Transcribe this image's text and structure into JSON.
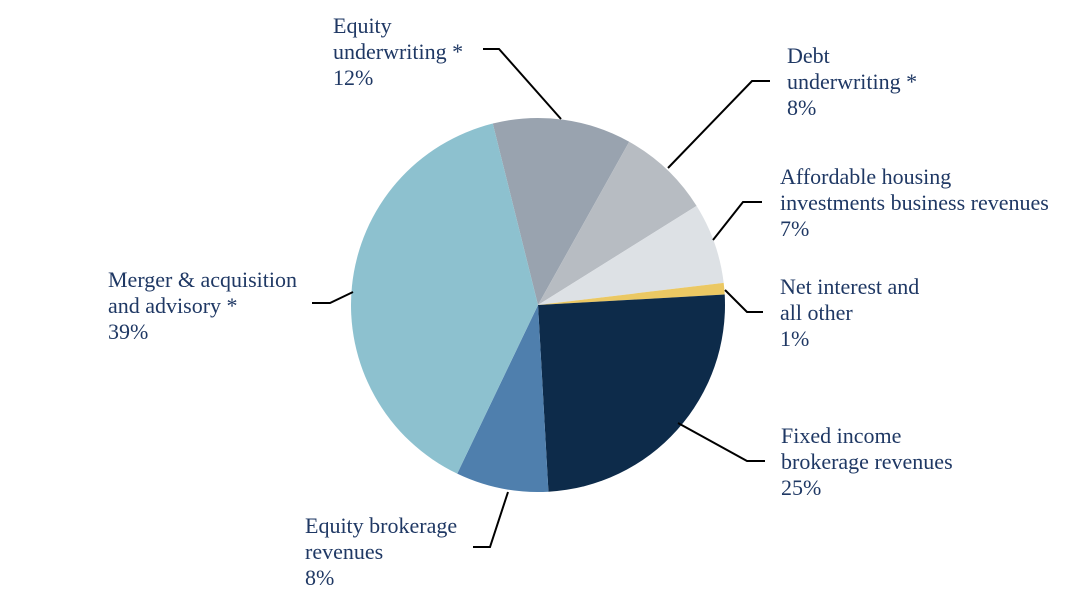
{
  "chart_data": {
    "type": "pie",
    "title": "",
    "legend": "none",
    "labels_position": "outside-with-leader-lines",
    "direction": "clockwise",
    "start_angle_deg": -14,
    "slices": [
      {
        "label": "Equity underwriting *",
        "value": 12,
        "display": "12%",
        "color": "#99a3af"
      },
      {
        "label": "Debt underwriting *",
        "value": 8,
        "display": "8%",
        "color": "#b7bcc2"
      },
      {
        "label": "Affordable housing investments business revenues",
        "value": 7,
        "display": "7%",
        "color": "#dde1e5"
      },
      {
        "label": "Net interest and all other",
        "value": 1,
        "display": "1%",
        "color": "#ebc863"
      },
      {
        "label": "Fixed income brokerage revenues",
        "value": 25,
        "display": "25%",
        "color": "#0d2b4a"
      },
      {
        "label": "Equity brokerage revenues",
        "value": 8,
        "display": "8%",
        "color": "#4f7fad"
      },
      {
        "label": "Merger & acquisition and advisory *",
        "value": 39,
        "display": "39%",
        "color": "#8dc1cf"
      }
    ]
  },
  "labels": {
    "equity_underwriting": {
      "line1": "Equity",
      "line2": "underwriting *",
      "pct": "12%"
    },
    "debt_underwriting": {
      "line1": "Debt",
      "line2": "underwriting *",
      "pct": "8%"
    },
    "affordable_housing": {
      "line1": "Affordable housing",
      "line2": "investments business revenues",
      "pct": "7%"
    },
    "net_interest": {
      "line1": "Net interest and",
      "line2": "all other",
      "pct": "1%"
    },
    "fixed_income": {
      "line1": "Fixed income",
      "line2": "brokerage revenues",
      "pct": "25%"
    },
    "equity_brokerage": {
      "line1": "Equity brokerage",
      "line2": "revenues",
      "pct": "8%"
    },
    "merger_acquisition": {
      "line1": "Merger & acquisition",
      "line2": "and advisory *",
      "pct": "39%"
    }
  },
  "colors": {
    "text": "#1f3864",
    "leader_line": "#000000",
    "background": "#ffffff"
  }
}
